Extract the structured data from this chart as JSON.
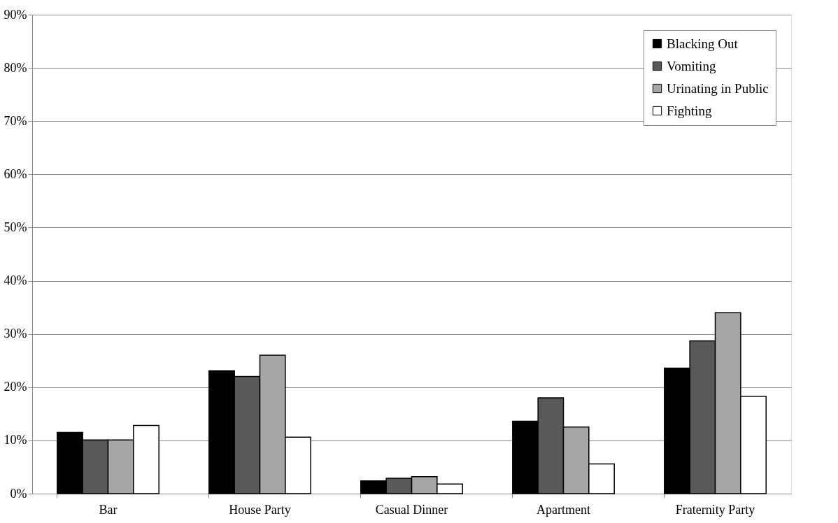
{
  "chart_data": {
    "type": "bar",
    "categories": [
      "Bar",
      "House Party",
      "Casual Dinner",
      "Apartment",
      "Fraternity Party"
    ],
    "series": [
      {
        "name": "Blacking Out",
        "color": "#000000",
        "values": [
          11.5,
          23.1,
          2.4,
          13.6,
          23.6
        ]
      },
      {
        "name": "Vomiting",
        "color": "#595959",
        "values": [
          10.1,
          22.0,
          2.9,
          18.0,
          28.7
        ]
      },
      {
        "name": "Urinating in Public",
        "color": "#a6a6a6",
        "values": [
          10.1,
          26.0,
          3.2,
          12.5,
          34.0
        ]
      },
      {
        "name": "Fighting",
        "color": "#ffffff",
        "values": [
          12.8,
          10.6,
          1.8,
          5.6,
          18.3
        ]
      }
    ],
    "ylim": [
      0,
      90
    ],
    "yticks": [
      {
        "value": 0,
        "label": "0%"
      },
      {
        "value": 10,
        "label": "10%"
      },
      {
        "value": 20,
        "label": "20%"
      },
      {
        "value": 30,
        "label": "30%"
      },
      {
        "value": 40,
        "label": "40%"
      },
      {
        "value": 50,
        "label": "50%"
      },
      {
        "value": 60,
        "label": "60%"
      },
      {
        "value": 70,
        "label": "70%"
      },
      {
        "value": 80,
        "label": "80%"
      },
      {
        "value": 90,
        "label": "90%"
      }
    ],
    "grid": "y",
    "legend": "top right"
  }
}
